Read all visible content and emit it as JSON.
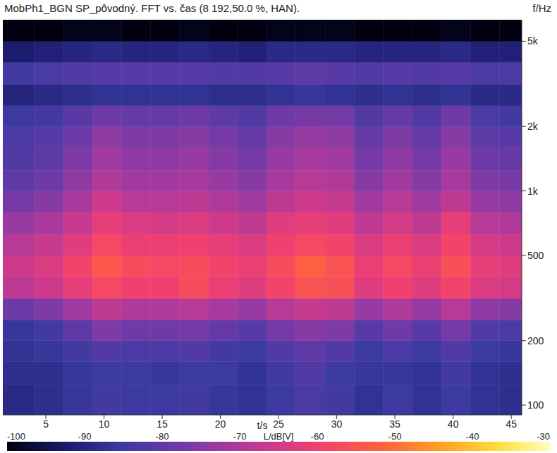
{
  "chart_data": {
    "type": "heatmap",
    "title": "MobPh1_BGN SP_pôvodný. FFT vs. čas (8 192,50.0 %, HAN).",
    "x_label": "t/s",
    "y_label": "f/Hz",
    "log": "y",
    "grid": false,
    "xlim": [
      1.3,
      45.9
    ],
    "xticks": [
      5,
      10,
      15,
      20,
      25,
      30,
      35,
      40,
      45
    ],
    "ylim": [
      90,
      6300
    ],
    "yticks": [
      100,
      200,
      500,
      {
        "value": 1000,
        "label": "1k"
      },
      {
        "value": 2000,
        "label": "2k"
      },
      {
        "value": 5000,
        "label": "5k"
      }
    ],
    "x_edges": [
      1.3,
      4,
      6.5,
      9,
      11.5,
      14,
      16.5,
      19,
      21.5,
      24,
      26.5,
      29,
      31.5,
      34,
      36.5,
      39,
      41.5,
      44,
      45.9
    ],
    "y_edges": [
      90,
      125,
      160,
      200,
      250,
      315,
      400,
      500,
      630,
      800,
      1000,
      1250,
      1600,
      2000,
      2500,
      3150,
      4000,
      5000,
      6300
    ],
    "cells": [
      [
        -89,
        -88,
        -86,
        -84,
        -85,
        -85,
        -84,
        -86,
        -87,
        -85,
        -83,
        -84,
        -87,
        -85,
        -87,
        -85,
        -87,
        -88
      ],
      [
        -88,
        -88,
        -86,
        -85,
        -85,
        -86,
        -85,
        -85,
        -87,
        -84,
        -82,
        -85,
        -86,
        -86,
        -87,
        -84,
        -87,
        -88
      ],
      [
        -87,
        -86,
        -84,
        -82,
        -83,
        -83,
        -82,
        -84,
        -85,
        -82,
        -80,
        -82,
        -85,
        -83,
        -85,
        -82,
        -85,
        -86
      ],
      [
        -86,
        -84,
        -80,
        -76,
        -78,
        -78,
        -77,
        -79,
        -81,
        -77,
        -75,
        -76,
        -81,
        -78,
        -81,
        -77,
        -82,
        -83
      ],
      [
        -78,
        -76,
        -72,
        -68,
        -70,
        -70,
        -69,
        -71,
        -73,
        -69,
        -67,
        -68,
        -73,
        -70,
        -73,
        -69,
        -74,
        -75
      ],
      [
        -68,
        -66,
        -62,
        -58,
        -60,
        -60,
        -57,
        -61,
        -63,
        -59,
        -55,
        -56,
        -63,
        -60,
        -63,
        -59,
        -64,
        -65
      ],
      [
        -66,
        -64,
        -59,
        -54,
        -57,
        -58,
        -57,
        -59,
        -61,
        -57,
        -52,
        -55,
        -61,
        -58,
        -61,
        -56,
        -62,
        -63
      ],
      [
        -69,
        -67,
        -63,
        -58,
        -61,
        -61,
        -60,
        -62,
        -64,
        -60,
        -58,
        -59,
        -64,
        -61,
        -64,
        -59,
        -65,
        -66
      ],
      [
        -73,
        -71,
        -67,
        -62,
        -64,
        -65,
        -64,
        -66,
        -68,
        -63,
        -62,
        -63,
        -68,
        -65,
        -68,
        -62,
        -69,
        -70
      ],
      [
        -77,
        -75,
        -71,
        -66,
        -69,
        -69,
        -68,
        -70,
        -72,
        -68,
        -66,
        -67,
        -72,
        -69,
        -72,
        -68,
        -73,
        -74
      ],
      [
        -80,
        -78,
        -74,
        -70,
        -72,
        -72,
        -71,
        -73,
        -75,
        -71,
        -69,
        -70,
        -75,
        -72,
        -75,
        -71,
        -76,
        -77
      ],
      [
        -82,
        -80,
        -76,
        -72,
        -74,
        -74,
        -73,
        -75,
        -77,
        -73,
        -71,
        -72,
        -77,
        -74,
        -77,
        -73,
        -78,
        -79
      ],
      [
        -83,
        -81,
        -78,
        -74,
        -76,
        -76,
        -75,
        -77,
        -79,
        -75,
        -73,
        -74,
        -79,
        -76,
        -79,
        -75,
        -80,
        -81
      ],
      [
        -85,
        -84,
        -81,
        -78,
        -79,
        -79,
        -78,
        -80,
        -82,
        -78,
        -77,
        -77,
        -82,
        -79,
        -82,
        -78,
        -83,
        -84
      ],
      [
        -90,
        -89,
        -88,
        -87,
        -87,
        -87,
        -87,
        -88,
        -88,
        -87,
        -86,
        -87,
        -88,
        -87,
        -88,
        -87,
        -89,
        -89
      ],
      [
        -84,
        -83,
        -82,
        -81,
        -81,
        -81,
        -81,
        -82,
        -82,
        -81,
        -80,
        -81,
        -82,
        -81,
        -82,
        -81,
        -83,
        -83
      ],
      [
        -92,
        -91,
        -90,
        -89,
        -90,
        -90,
        -89,
        -90,
        -91,
        -89,
        -89,
        -89,
        -90,
        -90,
        -90,
        -89,
        -91,
        -91
      ],
      [
        -100,
        -100,
        -99,
        -99,
        -100,
        -100,
        -99,
        -100,
        -100,
        -99,
        -99,
        -99,
        -100,
        -100,
        -100,
        -99,
        -100,
        -100
      ]
    ],
    "colorbar": {
      "label": "L/dB[V]",
      "range": [
        -100,
        -30
      ],
      "ticks": [
        -100,
        -90,
        -80,
        -70,
        -60,
        -50,
        -40,
        -30
      ]
    }
  }
}
